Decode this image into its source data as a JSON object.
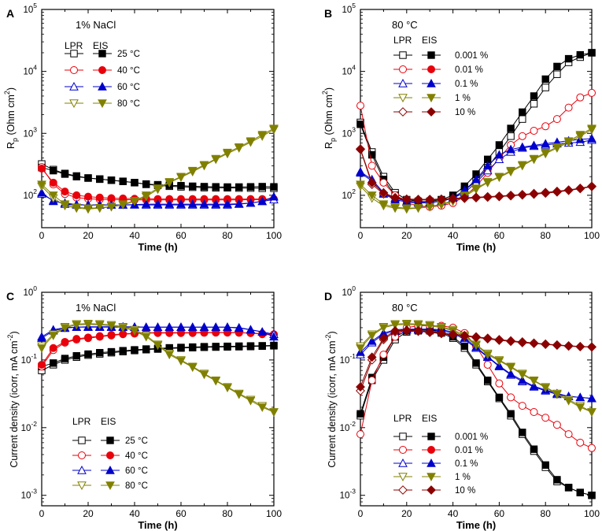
{
  "figure": {
    "x_values": [
      0,
      5,
      10,
      15,
      20,
      25,
      30,
      35,
      40,
      45,
      50,
      55,
      60,
      65,
      70,
      75,
      80,
      85,
      90,
      95,
      100
    ]
  },
  "chart_data": [
    {
      "type": "line",
      "panel_label": "A",
      "title": "1% NaCl",
      "xlabel": "Time (h)",
      "ylabel_main": "R",
      "ylabel_sub": "p",
      "ylabel_rest": " (Ohm cm",
      "ylabel_sup": "2",
      "ylabel_end": ")",
      "yscale": "log",
      "xlim": [
        0,
        100
      ],
      "ylim": [
        30,
        100000
      ],
      "xticks": [
        "0",
        "20",
        "40",
        "60",
        "80",
        "100"
      ],
      "yticks": [
        {
          "base": "10",
          "exp": "2",
          "value": 100
        },
        {
          "base": "10",
          "exp": "3",
          "value": 1000
        },
        {
          "base": "10",
          "exp": "4",
          "value": 10000
        },
        {
          "base": "10",
          "exp": "5",
          "value": 100000
        }
      ],
      "legend_headers": [
        "LPR",
        "EIS"
      ],
      "legend_position": "upper-left",
      "series": [
        {
          "name": "25 °C",
          "marker": "square",
          "color": "#000000",
          "lpr": [
            320,
            260,
            225,
            205,
            190,
            183,
            175,
            168,
            160,
            150,
            145,
            140,
            137,
            135,
            133,
            132,
            132,
            131,
            131,
            130,
            130
          ],
          "eis": [
            280,
            250,
            220,
            200,
            190,
            182,
            175,
            168,
            160,
            152,
            148,
            145,
            143,
            140,
            138,
            137,
            136,
            136,
            137,
            138,
            137
          ]
        },
        {
          "name": "40 °C",
          "marker": "circle",
          "color": "#e8000b",
          "lpr": [
            285,
            150,
            105,
            92,
            88,
            86,
            85,
            85,
            84,
            84,
            84,
            84,
            84,
            84,
            84,
            84,
            84,
            84,
            85,
            85,
            86
          ],
          "eis": [
            270,
            160,
            115,
            100,
            95,
            92,
            90,
            89,
            88,
            88,
            87,
            87,
            87,
            87,
            87,
            87,
            87,
            87,
            87,
            87,
            87
          ]
        },
        {
          "name": "60 °C",
          "marker": "triangle-up",
          "color": "#0000cc",
          "lpr": [
            105,
            82,
            72,
            70,
            70,
            70,
            70,
            70,
            70,
            70,
            70,
            70,
            70,
            70,
            70,
            70,
            70,
            72,
            75,
            80,
            85
          ],
          "eis": [
            110,
            80,
            75,
            71,
            70,
            70,
            70,
            70,
            71,
            72,
            72,
            72,
            72,
            72,
            72,
            72,
            72,
            73,
            75,
            80,
            95
          ]
        },
        {
          "name": "80 °C",
          "marker": "triangle-down",
          "color": "#808000",
          "lpr": [
            140,
            90,
            68,
            62,
            60,
            62,
            65,
            70,
            80,
            95,
            125,
            160,
            195,
            240,
            300,
            380,
            470,
            580,
            720,
            900,
            1150
          ],
          "eis": [
            150,
            100,
            72,
            64,
            62,
            63,
            66,
            72,
            82,
            100,
            130,
            165,
            200,
            250,
            310,
            390,
            490,
            600,
            750,
            950,
            1200
          ]
        }
      ]
    },
    {
      "type": "line",
      "panel_label": "B",
      "title": "80 °C",
      "xlabel": "Time (h)",
      "ylabel_main": "R",
      "ylabel_sub": "p",
      "ylabel_rest": " (Ohm cm",
      "ylabel_sup": "2",
      "ylabel_end": ")",
      "yscale": "log",
      "xlim": [
        0,
        100
      ],
      "ylim": [
        30,
        100000
      ],
      "xticks": [
        "0",
        "20",
        "40",
        "60",
        "80",
        "100"
      ],
      "yticks": [
        {
          "base": "10",
          "exp": "2",
          "value": 100
        },
        {
          "base": "10",
          "exp": "3",
          "value": 1000
        },
        {
          "base": "10",
          "exp": "4",
          "value": 10000
        },
        {
          "base": "10",
          "exp": "5",
          "value": 100000
        }
      ],
      "legend_headers": [
        "LPR",
        "EIS"
      ],
      "legend_position": "upper-left",
      "series": [
        {
          "name": "0.001 %",
          "marker": "square",
          "color": "#000000",
          "lpr": [
            1500,
            500,
            200,
            110,
            85,
            80,
            78,
            80,
            90,
            120,
            170,
            280,
            500,
            900,
            1700,
            3000,
            5500,
            9000,
            14000,
            17000,
            20000
          ],
          "eis": [
            1400,
            450,
            180,
            100,
            80,
            78,
            80,
            85,
            100,
            140,
            220,
            380,
            650,
            1200,
            2200,
            4000,
            7500,
            12000,
            16000,
            18500,
            20000
          ]
        },
        {
          "name": "0.01 %",
          "marker": "circle",
          "color": "#e8000b",
          "lpr": [
            2800,
            300,
            160,
            100,
            75,
            68,
            65,
            68,
            75,
            95,
            140,
            230,
            400,
            650,
            900,
            1100,
            1300,
            1700,
            2600,
            3800,
            4500
          ]
        },
        {
          "name": "0.1 %",
          "marker": "triangle-up",
          "color": "#0000cc",
          "lpr": [
            240,
            180,
            110,
            90,
            80,
            78,
            78,
            80,
            90,
            110,
            160,
            250,
            380,
            500,
            580,
            620,
            650,
            680,
            700,
            720,
            780
          ],
          "eis": [
            230,
            170,
            105,
            85,
            78,
            75,
            76,
            80,
            92,
            120,
            180,
            300,
            450,
            550,
            600,
            640,
            680,
            720,
            760,
            800,
            820
          ]
        },
        {
          "name": "1 %",
          "marker": "triangle-down",
          "color": "#808000",
          "lpr": [
            140,
            90,
            68,
            62,
            60,
            62,
            65,
            70,
            80,
            95,
            125,
            160,
            195,
            240,
            300,
            380,
            470,
            580,
            720,
            900,
            1150
          ],
          "eis": [
            150,
            100,
            72,
            64,
            62,
            63,
            66,
            72,
            82,
            100,
            130,
            165,
            200,
            250,
            310,
            390,
            490,
            600,
            750,
            950,
            1200
          ]
        },
        {
          "name": "10 %",
          "marker": "diamond",
          "color": "#8b0000",
          "lpr": [
            550,
            150,
            105,
            90,
            85,
            84,
            84,
            85,
            87,
            89,
            91,
            93,
            95,
            98,
            101,
            104,
            108,
            113,
            120,
            128,
            138
          ],
          "eis": [
            560,
            160,
            110,
            92,
            87,
            86,
            86,
            87,
            89,
            91,
            93,
            95,
            97,
            100,
            103,
            107,
            111,
            116,
            122,
            130,
            140
          ]
        }
      ]
    },
    {
      "type": "line",
      "panel_label": "C",
      "title": "1% NaCl",
      "xlabel": "Time (h)",
      "ylabel_main": "Current density (icorr, mA cm",
      "ylabel_sup": "-2",
      "ylabel_end": ")",
      "yscale": "log",
      "xlim": [
        0,
        100
      ],
      "ylim": [
        0.0007,
        1
      ],
      "xticks": [
        "0",
        "20",
        "40",
        "60",
        "80",
        "100"
      ],
      "yticks": [
        {
          "base": "10",
          "exp": "-3",
          "value": 0.001
        },
        {
          "base": "10",
          "exp": "-2",
          "value": 0.01
        },
        {
          "base": "10",
          "exp": "-1",
          "value": 0.1
        },
        {
          "base": "10",
          "exp": "0",
          "value": 1
        }
      ],
      "legend_headers": [
        "LPR",
        "EIS"
      ],
      "legend_position": "lower-left",
      "series": [
        {
          "name": "25 °C",
          "marker": "square",
          "color": "#000000",
          "lpr": [
            0.07,
            0.085,
            0.1,
            0.11,
            0.118,
            0.123,
            0.128,
            0.133,
            0.138,
            0.142,
            0.145,
            0.148,
            0.15,
            0.152,
            0.154,
            0.155,
            0.156,
            0.157,
            0.158,
            0.16,
            0.162
          ],
          "eis": [
            0.08,
            0.09,
            0.105,
            0.115,
            0.122,
            0.128,
            0.132,
            0.137,
            0.141,
            0.145,
            0.148,
            0.151,
            0.153,
            0.155,
            0.157,
            0.158,
            0.159,
            0.16,
            0.161,
            0.162,
            0.164
          ]
        },
        {
          "name": "40 °C",
          "marker": "circle",
          "color": "#e8000b",
          "lpr": [
            0.08,
            0.14,
            0.18,
            0.2,
            0.21,
            0.22,
            0.23,
            0.24,
            0.245,
            0.25,
            0.25,
            0.25,
            0.25,
            0.25,
            0.252,
            0.253,
            0.253,
            0.252,
            0.25,
            0.24,
            0.235
          ],
          "eis": [
            0.085,
            0.15,
            0.185,
            0.205,
            0.215,
            0.225,
            0.235,
            0.243,
            0.248,
            0.252,
            0.253,
            0.254,
            0.254,
            0.254,
            0.255,
            0.255,
            0.255,
            0.253,
            0.25,
            0.245,
            0.24
          ]
        },
        {
          "name": "60 °C",
          "marker": "triangle-up",
          "color": "#0000cc",
          "lpr": [
            0.22,
            0.28,
            0.3,
            0.305,
            0.305,
            0.305,
            0.305,
            0.305,
            0.305,
            0.305,
            0.305,
            0.305,
            0.305,
            0.305,
            0.305,
            0.305,
            0.305,
            0.295,
            0.28,
            0.26,
            0.24
          ],
          "eis": [
            0.21,
            0.27,
            0.295,
            0.305,
            0.31,
            0.31,
            0.31,
            0.31,
            0.308,
            0.305,
            0.305,
            0.305,
            0.305,
            0.305,
            0.305,
            0.305,
            0.305,
            0.3,
            0.28,
            0.26,
            0.22
          ]
        },
        {
          "name": "80 °C",
          "marker": "triangle-down",
          "color": "#808000",
          "lpr": [
            0.16,
            0.24,
            0.31,
            0.34,
            0.345,
            0.34,
            0.33,
            0.31,
            0.28,
            0.23,
            0.17,
            0.125,
            0.1,
            0.08,
            0.063,
            0.05,
            0.04,
            0.032,
            0.026,
            0.021,
            0.017
          ],
          "eis": [
            0.15,
            0.23,
            0.3,
            0.33,
            0.335,
            0.33,
            0.32,
            0.3,
            0.27,
            0.22,
            0.165,
            0.12,
            0.097,
            0.078,
            0.061,
            0.049,
            0.039,
            0.031,
            0.025,
            0.02,
            0.017
          ]
        }
      ]
    },
    {
      "type": "line",
      "panel_label": "D",
      "title": "80 °C",
      "xlabel": "Time (h)",
      "ylabel_main": "Current density (icorr, mA cm",
      "ylabel_sup": "-2",
      "ylabel_end": ")",
      "yscale": "log",
      "xlim": [
        0,
        100
      ],
      "ylim": [
        0.0007,
        1
      ],
      "xticks": [
        "0",
        "20",
        "40",
        "60",
        "80",
        "100"
      ],
      "yticks": [
        {
          "base": "10",
          "exp": "-3",
          "value": 0.001
        },
        {
          "base": "10",
          "exp": "-2",
          "value": 0.01
        },
        {
          "base": "10",
          "exp": "-1",
          "value": 0.1
        },
        {
          "base": "10",
          "exp": "0",
          "value": 1
        }
      ],
      "legend_headers": [
        "LPR",
        "EIS"
      ],
      "legend_position": "lower-left",
      "series": [
        {
          "name": "0.001 %",
          "marker": "square",
          "color": "#000000",
          "lpr": [
            0.015,
            0.05,
            0.1,
            0.2,
            0.26,
            0.27,
            0.27,
            0.25,
            0.21,
            0.15,
            0.085,
            0.048,
            0.027,
            0.015,
            0.008,
            0.0045,
            0.0026,
            0.0016,
            0.0013,
            0.0011,
            0.001
          ],
          "eis": [
            0.016,
            0.055,
            0.11,
            0.22,
            0.27,
            0.28,
            0.28,
            0.26,
            0.22,
            0.16,
            0.09,
            0.05,
            0.028,
            0.016,
            0.0085,
            0.0048,
            0.0028,
            0.0017,
            0.0013,
            0.0011,
            0.001
          ]
        },
        {
          "name": "0.01 %",
          "marker": "circle",
          "color": "#e8000b",
          "lpr": [
            0.008,
            0.05,
            0.12,
            0.22,
            0.3,
            0.32,
            0.32,
            0.32,
            0.3,
            0.25,
            0.16,
            0.085,
            0.045,
            0.028,
            0.021,
            0.017,
            0.014,
            0.011,
            0.008,
            0.006,
            0.005
          ]
        },
        {
          "name": "0.1 %",
          "marker": "triangle-up",
          "color": "#0000cc",
          "lpr": [
            0.12,
            0.18,
            0.24,
            0.27,
            0.28,
            0.28,
            0.28,
            0.27,
            0.25,
            0.2,
            0.15,
            0.11,
            0.08,
            0.06,
            0.048,
            0.04,
            0.035,
            0.031,
            0.029,
            0.028,
            0.027
          ],
          "eis": [
            0.13,
            0.19,
            0.25,
            0.28,
            0.285,
            0.285,
            0.285,
            0.28,
            0.26,
            0.21,
            0.155,
            0.112,
            0.082,
            0.062,
            0.05,
            0.041,
            0.036,
            0.032,
            0.029,
            0.028,
            0.027
          ]
        },
        {
          "name": "1 %",
          "marker": "triangle-down",
          "color": "#808000",
          "lpr": [
            0.16,
            0.24,
            0.31,
            0.34,
            0.345,
            0.34,
            0.33,
            0.31,
            0.28,
            0.23,
            0.17,
            0.125,
            0.1,
            0.08,
            0.063,
            0.05,
            0.04,
            0.032,
            0.026,
            0.021,
            0.017
          ],
          "eis": [
            0.15,
            0.23,
            0.3,
            0.33,
            0.335,
            0.33,
            0.32,
            0.3,
            0.27,
            0.22,
            0.165,
            0.12,
            0.097,
            0.078,
            0.061,
            0.049,
            0.039,
            0.031,
            0.025,
            0.02,
            0.017
          ]
        },
        {
          "name": "10 %",
          "marker": "diamond",
          "color": "#8b0000",
          "lpr": [
            0.035,
            0.1,
            0.2,
            0.26,
            0.27,
            0.265,
            0.255,
            0.245,
            0.235,
            0.225,
            0.215,
            0.205,
            0.195,
            0.188,
            0.18,
            0.175,
            0.17,
            0.165,
            0.16,
            0.157,
            0.155
          ],
          "eis": [
            0.04,
            0.11,
            0.21,
            0.27,
            0.275,
            0.27,
            0.26,
            0.25,
            0.24,
            0.23,
            0.22,
            0.21,
            0.2,
            0.192,
            0.185,
            0.178,
            0.172,
            0.167,
            0.162,
            0.158,
            0.156
          ]
        }
      ]
    }
  ]
}
